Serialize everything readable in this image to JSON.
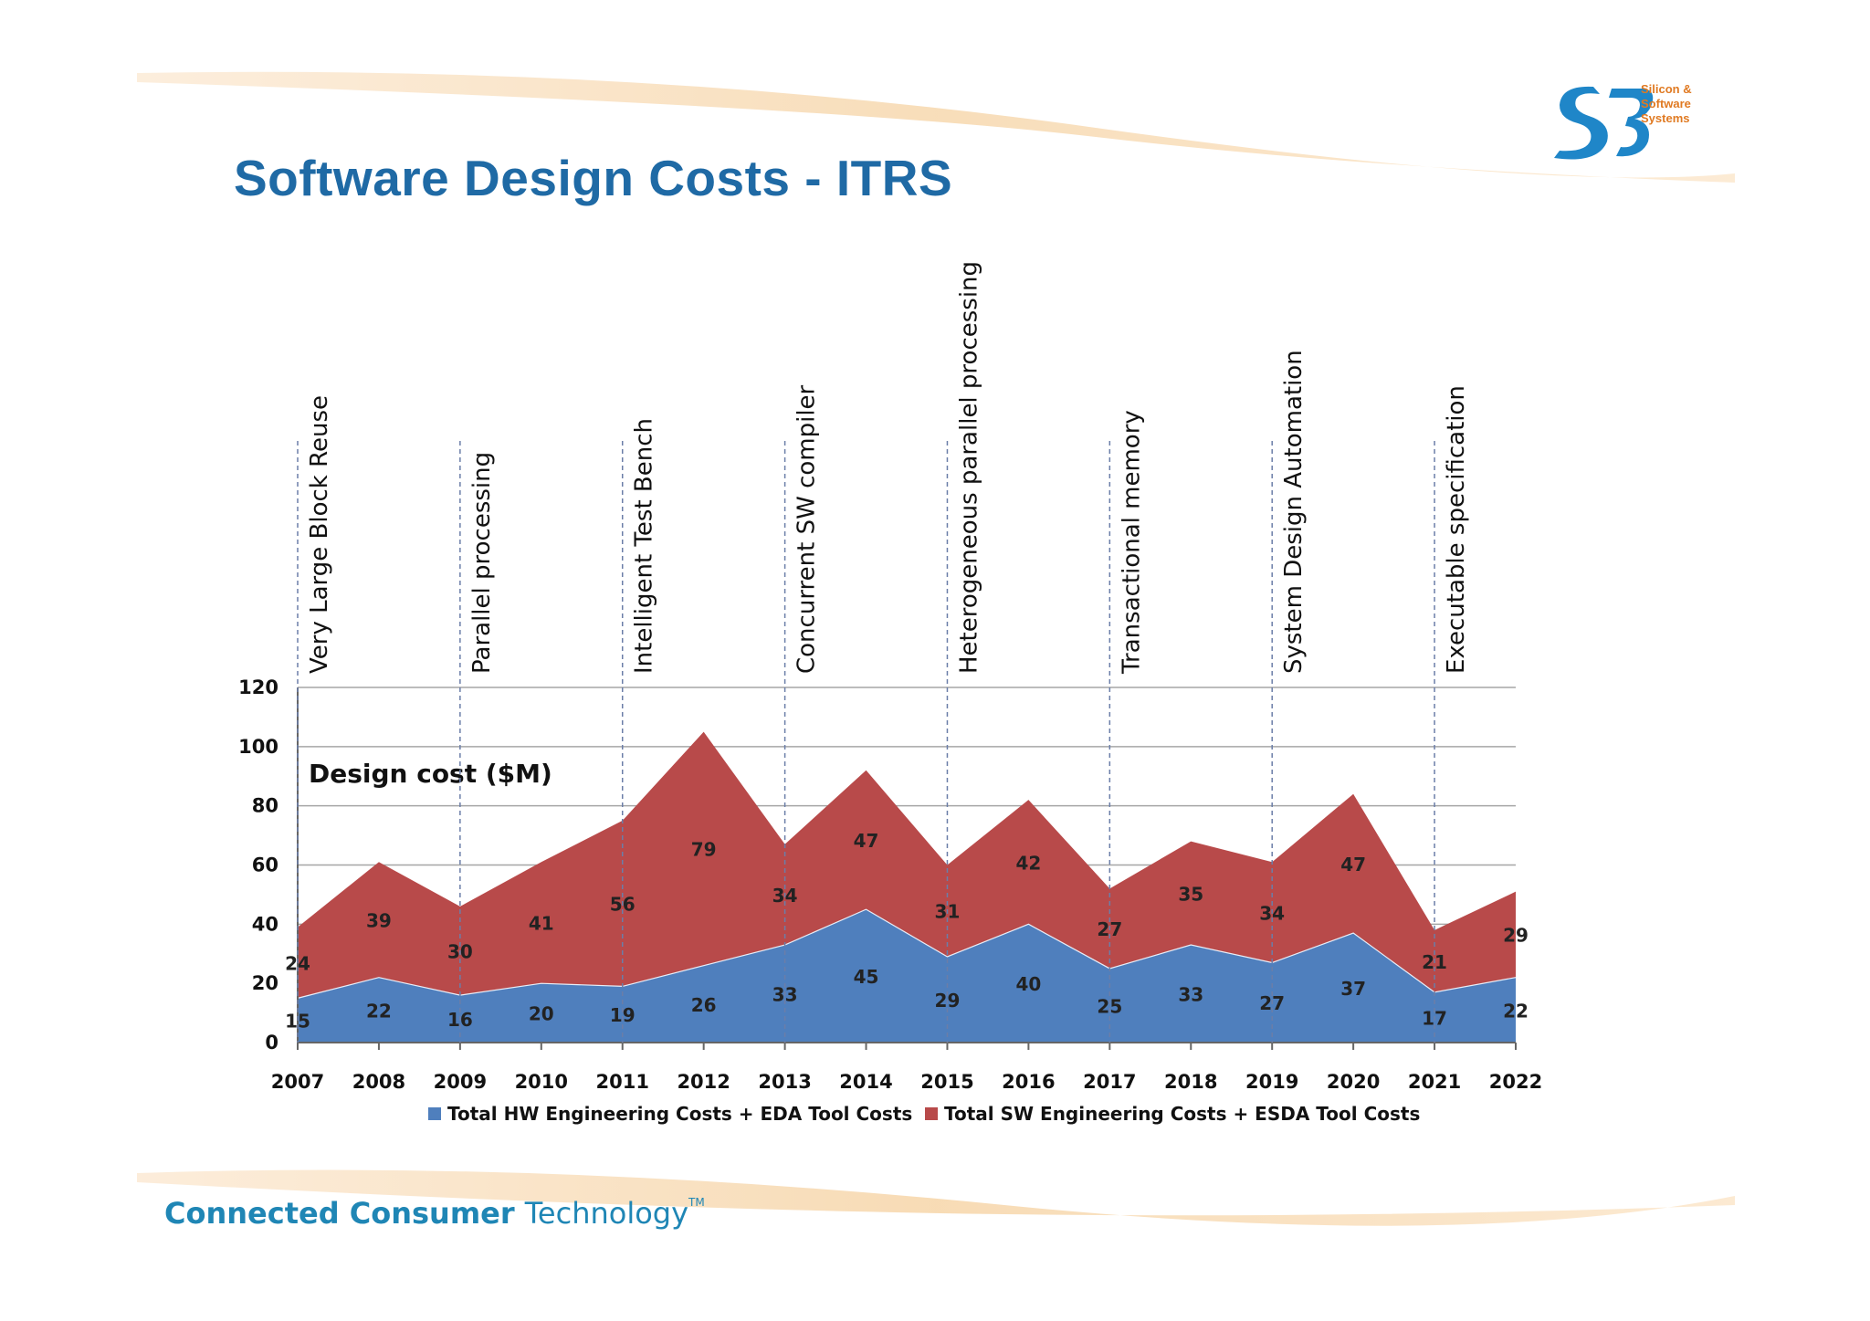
{
  "slide": {
    "title": "Software Design Costs - ITRS",
    "logo": {
      "lines": [
        "Silicon &",
        "Software",
        "Systems"
      ],
      "icon": "s3-logo-icon"
    },
    "footer": {
      "part1": "Connected Consumer",
      "part2": "Technology",
      "tm": "TM"
    },
    "colors": {
      "title": "#1f6aa5",
      "hw": "#4f7fbd",
      "sw": "#b84a4a",
      "accent": "#e07a22"
    }
  },
  "chart_data": {
    "type": "area",
    "stacked": true,
    "ylabel": "Design cost ($M)",
    "xlabel": "",
    "categories": [
      "2007",
      "2008",
      "2009",
      "2010",
      "2011",
      "2012",
      "2013",
      "2014",
      "2015",
      "2016",
      "2017",
      "2018",
      "2019",
      "2020",
      "2021",
      "2022"
    ],
    "series": [
      {
        "name": "Total HW Engineering Costs + EDA Tool Costs",
        "color": "#4f7fbd",
        "values": [
          15,
          22,
          16,
          20,
          19,
          26,
          33,
          45,
          29,
          40,
          25,
          33,
          27,
          37,
          17,
          22
        ]
      },
      {
        "name": "Total SW Engineering Costs + ESDA Tool Costs",
        "color": "#b84a4a",
        "values": [
          24,
          39,
          30,
          41,
          56,
          79,
          34,
          47,
          31,
          42,
          27,
          35,
          34,
          47,
          21,
          29
        ]
      }
    ],
    "ylim": [
      0,
      120
    ],
    "yticks": [
      "0",
      "20",
      "40",
      "60",
      "80",
      "100",
      "120"
    ],
    "grid": true,
    "legend": "bottom",
    "annotations": [
      {
        "year": "2007",
        "label": "Very Large Block Reuse"
      },
      {
        "year": "2009",
        "label": "Parallel processing"
      },
      {
        "year": "2011",
        "label": "Intelligent Test Bench"
      },
      {
        "year": "2013",
        "label": "Concurrent SW compiler"
      },
      {
        "year": "2015",
        "label": "Heterogeneous parallel processing"
      },
      {
        "year": "2017",
        "label": "Transactional memory"
      },
      {
        "year": "2019",
        "label": "System Design Automation"
      },
      {
        "year": "2021",
        "label": "Executable specification"
      }
    ]
  }
}
